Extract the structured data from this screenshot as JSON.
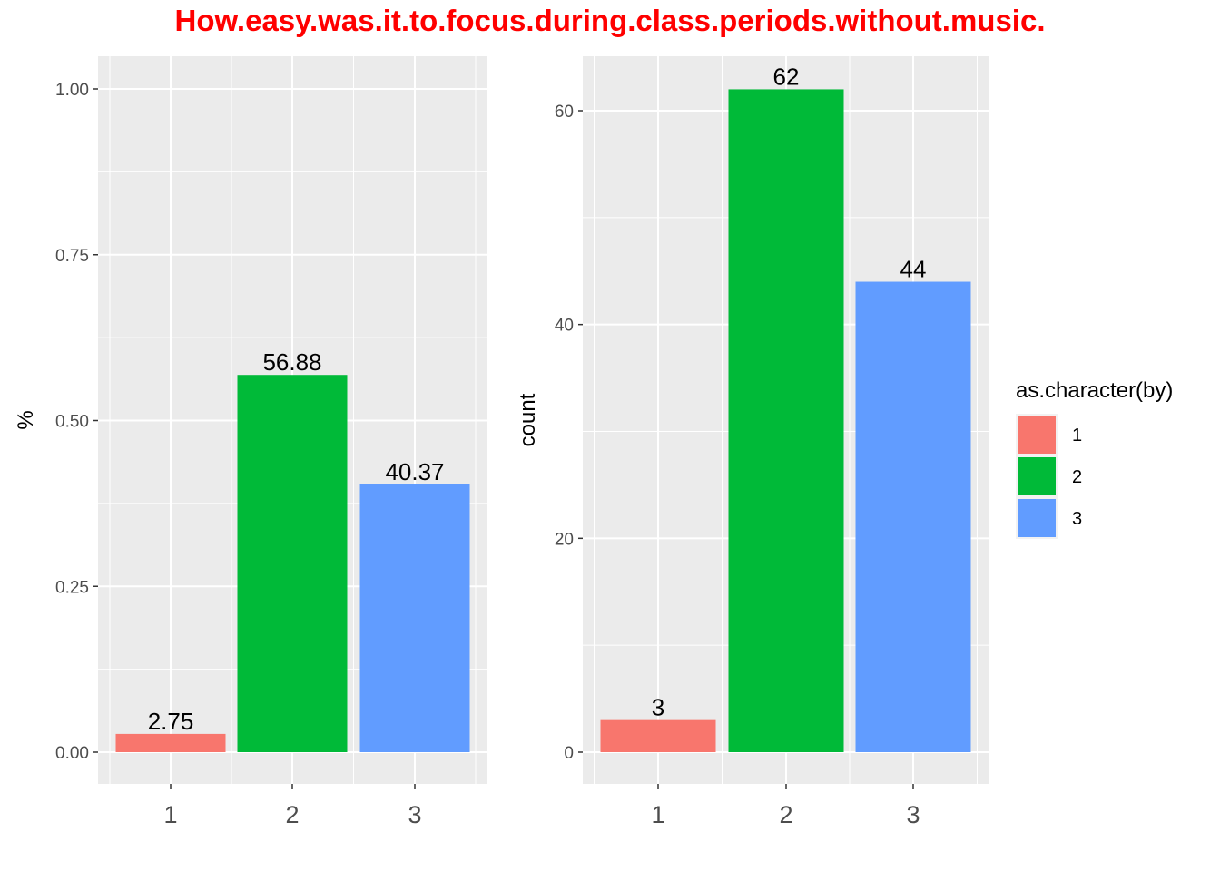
{
  "title": "How.easy.was.it.to.focus.during.class.periods.without.music.",
  "colors": {
    "1": "#f8766d",
    "2": "#00ba38",
    "3": "#619cff",
    "panel": "#ebebeb",
    "grid": "#ffffff",
    "title": "#ff0000"
  },
  "legend": {
    "title": "as.character(by)",
    "items": [
      {
        "key": "1",
        "label": "1",
        "color": "#f8766d"
      },
      {
        "key": "2",
        "label": "2",
        "color": "#00ba38"
      },
      {
        "key": "3",
        "label": "3",
        "color": "#619cff"
      }
    ]
  },
  "chart_data": [
    {
      "type": "bar",
      "title": "",
      "xlabel": "",
      "ylabel": "%",
      "categories": [
        "1",
        "2",
        "3"
      ],
      "values": [
        0.0275,
        0.5688,
        0.4037
      ],
      "labels": [
        "2.75",
        "56.88",
        "40.37"
      ],
      "ylim": [
        0,
        1.0
      ],
      "yticks": [
        0.0,
        0.25,
        0.5,
        0.75,
        1.0
      ],
      "ytick_labels": [
        "0.00",
        "0.25",
        "0.50",
        "0.75",
        "1.00"
      ],
      "grid": true,
      "legend": "none"
    },
    {
      "type": "bar",
      "title": "",
      "xlabel": "",
      "ylabel": "count",
      "categories": [
        "1",
        "2",
        "3"
      ],
      "values": [
        3,
        62,
        44
      ],
      "labels": [
        "3",
        "62",
        "44"
      ],
      "ylim": [
        0,
        62
      ],
      "yticks": [
        0,
        20,
        40,
        60
      ],
      "ytick_labels": [
        "0",
        "20",
        "40",
        "60"
      ],
      "grid": true,
      "legend": "right"
    }
  ]
}
